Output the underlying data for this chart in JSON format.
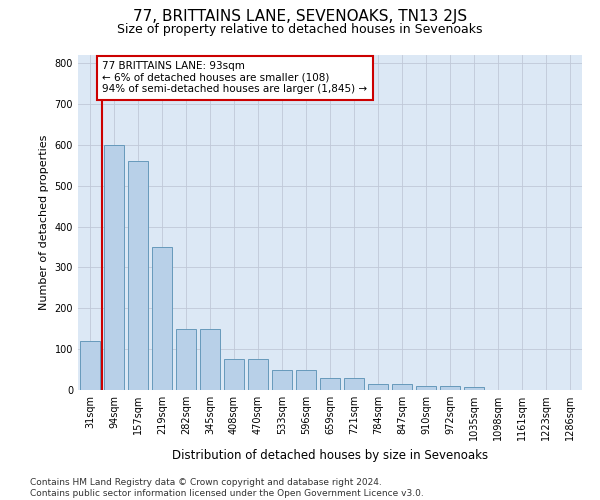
{
  "title": "77, BRITTAINS LANE, SEVENOAKS, TN13 2JS",
  "subtitle": "Size of property relative to detached houses in Sevenoaks",
  "xlabel": "Distribution of detached houses by size in Sevenoaks",
  "ylabel": "Number of detached properties",
  "categories": [
    "31sqm",
    "94sqm",
    "157sqm",
    "219sqm",
    "282sqm",
    "345sqm",
    "408sqm",
    "470sqm",
    "533sqm",
    "596sqm",
    "659sqm",
    "721sqm",
    "784sqm",
    "847sqm",
    "910sqm",
    "972sqm",
    "1035sqm",
    "1098sqm",
    "1161sqm",
    "1223sqm",
    "1286sqm"
  ],
  "values": [
    120,
    600,
    560,
    350,
    150,
    150,
    75,
    75,
    50,
    50,
    30,
    30,
    15,
    15,
    10,
    10,
    8,
    0,
    0,
    0,
    0
  ],
  "bar_color": "#b8d0e8",
  "bar_edge_color": "#6699bb",
  "highlight_line_color": "#cc0000",
  "annotation_text": "77 BRITTAINS LANE: 93sqm\n← 6% of detached houses are smaller (108)\n94% of semi-detached houses are larger (1,845) →",
  "annotation_box_facecolor": "#ffffff",
  "annotation_box_edgecolor": "#cc0000",
  "ylim": [
    0,
    820
  ],
  "yticks": [
    0,
    100,
    200,
    300,
    400,
    500,
    600,
    700,
    800
  ],
  "bg_color": "#dce8f5",
  "footer": "Contains HM Land Registry data © Crown copyright and database right 2024.\nContains public sector information licensed under the Open Government Licence v3.0.",
  "title_fontsize": 11,
  "subtitle_fontsize": 9,
  "ylabel_fontsize": 8,
  "xlabel_fontsize": 8.5,
  "tick_fontsize": 7,
  "annotation_fontsize": 7.5,
  "footer_fontsize": 6.5
}
